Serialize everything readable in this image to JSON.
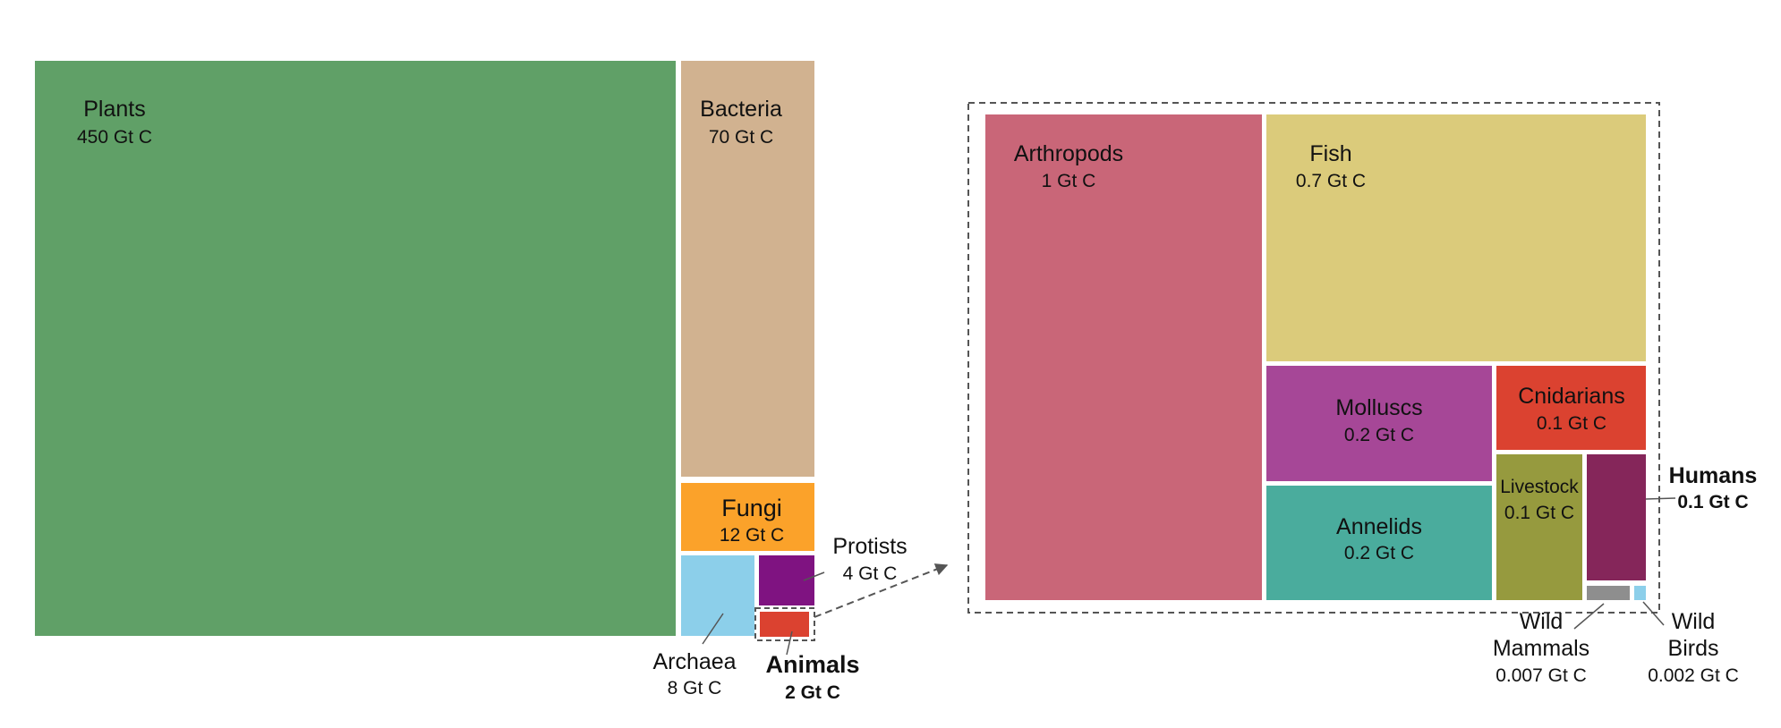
{
  "chart_data": [
    {
      "type": "treemap",
      "title": "",
      "unit": "Gt C",
      "items": [
        {
          "name": "Plants",
          "value_label": "450 Gt C",
          "value": 450,
          "color": "#60A067"
        },
        {
          "name": "Bacteria",
          "value_label": "70 Gt C",
          "value": 70,
          "color": "#D1B290"
        },
        {
          "name": "Fungi",
          "value_label": "12 Gt C",
          "value": 12,
          "color": "#FBA22A"
        },
        {
          "name": "Archaea",
          "value_label": "8 Gt C",
          "value": 8,
          "color": "#8CCFEA"
        },
        {
          "name": "Protists",
          "value_label": "4 Gt C",
          "value": 4,
          "color": "#7F1381"
        },
        {
          "name": "Animals",
          "value_label": "2 Gt C",
          "value": 2,
          "color": "#DB4230"
        }
      ]
    },
    {
      "type": "treemap",
      "title": "",
      "unit": "Gt C",
      "items": [
        {
          "name": "Arthropods",
          "value_label": "1 Gt C",
          "value": 1,
          "color": "#C96678"
        },
        {
          "name": "Fish",
          "value_label": "0.7 Gt C",
          "value": 0.7,
          "color": "#DBCB7B"
        },
        {
          "name": "Molluscs",
          "value_label": "0.2 Gt C",
          "value": 0.2,
          "color": "#A64797"
        },
        {
          "name": "Cnidarians",
          "value_label": "0.1 Gt C",
          "value": 0.1,
          "color": "#DB4230"
        },
        {
          "name": "Annelids",
          "value_label": "0.2 Gt C",
          "value": 0.2,
          "color": "#4AAC9D"
        },
        {
          "name": "Livestock",
          "value_label": "0.1 Gt C",
          "value": 0.1,
          "color": "#969A3E"
        },
        {
          "name": "Humans",
          "value_label": "0.1 Gt C",
          "value": 0.1,
          "color": "#85265A"
        },
        {
          "name": "Wild Mammals",
          "value_label": "0.007 Gt C",
          "value": 0.007,
          "color": "#8E8E8E"
        },
        {
          "name": "Wild Birds",
          "value_label": "0.002 Gt C",
          "value": 0.002,
          "color": "#8CCFEA"
        }
      ]
    }
  ]
}
